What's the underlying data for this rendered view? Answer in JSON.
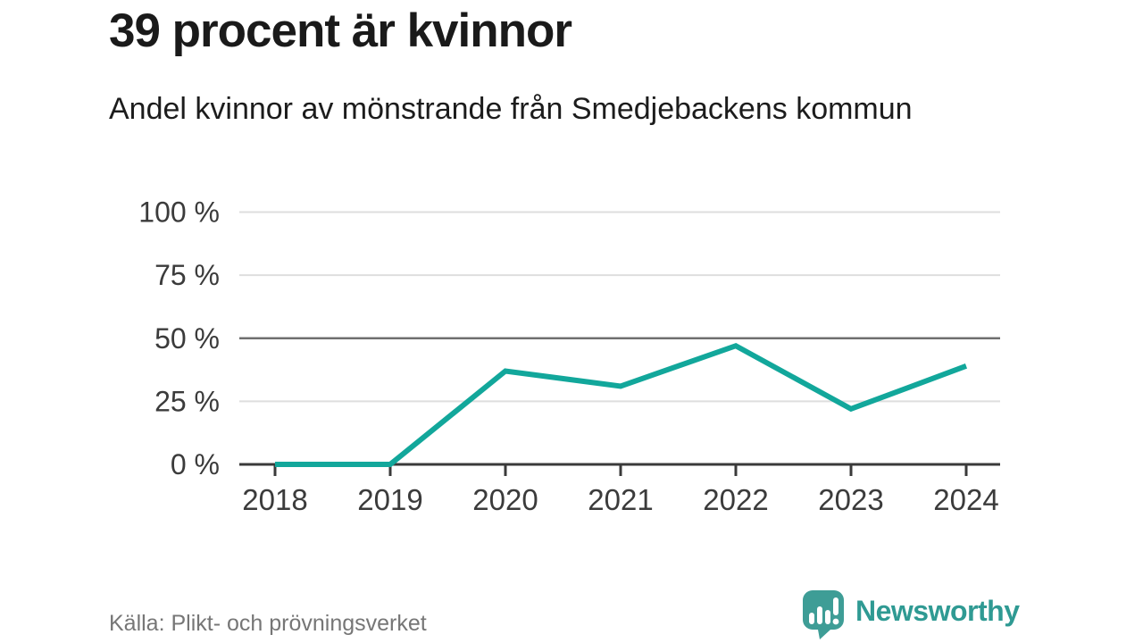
{
  "header": {
    "title": "39 procent är kvinnor",
    "subtitle": "Andel kvinnor av mönstrande från Smedjebackens kommun"
  },
  "footer": {
    "source": "Källa: Plikt- och prövningsverket",
    "brand": {
      "name": "Newsworthy",
      "icon": "newsworthy-speech-bubble-bar-chart-icon"
    }
  },
  "chart_data": {
    "type": "line",
    "title": "39 procent är kvinnor",
    "subtitle": "Andel kvinnor av mönstrande från Smedjebackens kommun",
    "categories": [
      "2018",
      "2019",
      "2020",
      "2021",
      "2022",
      "2023",
      "2024"
    ],
    "values": [
      0,
      0,
      37,
      31,
      47,
      22,
      39
    ],
    "unit": "%",
    "xlabel": "",
    "ylabel": "",
    "ylim": [
      0,
      100
    ],
    "grid": true,
    "legend": "none",
    "y_ticks": [
      {
        "v": 0,
        "label": "0 %"
      },
      {
        "v": 25,
        "label": "25 %"
      },
      {
        "v": 50,
        "label": "50 %"
      },
      {
        "v": 75,
        "label": "75 %"
      },
      {
        "v": 100,
        "label": "100 %"
      }
    ],
    "emphasized_gridline": 50,
    "line_color": "#12a79b"
  },
  "colors": {
    "accent_line": "#12a79b",
    "grid_light": "#dedede",
    "grid_emphasis": "#6f6f6f",
    "axis_dark": "#3a3a3a",
    "axis_label": "#3b3b3b",
    "title_text": "#1a1a1a",
    "source_text": "#767676",
    "brand_teal": "#3e9d96",
    "brand_text": "#2f9a93"
  }
}
